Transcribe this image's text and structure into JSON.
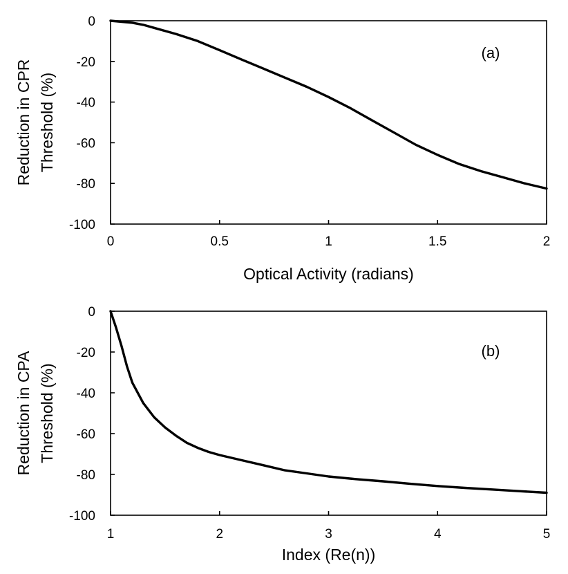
{
  "chart_data": [
    {
      "type": "line",
      "panel_label": "(a)",
      "title": "",
      "xlabel": "Optical Activity (radians)",
      "ylabel_lines": [
        "Reduction in CPR",
        "Threshold (%)"
      ],
      "xlim": [
        0,
        2
      ],
      "ylim": [
        -100,
        0
      ],
      "xticks": [
        0,
        0.5,
        1,
        1.5,
        2
      ],
      "xtick_labels": [
        "0",
        "0.5",
        "1",
        "1.5",
        "2"
      ],
      "yticks": [
        0,
        -20,
        -40,
        -60,
        -80,
        -100
      ],
      "ytick_labels": [
        "0",
        "-20",
        "-40",
        "-60",
        "-80",
        "-100"
      ],
      "grid": false,
      "series": [
        {
          "name": "CPR threshold reduction",
          "color": "#000000",
          "x": [
            0,
            0.1,
            0.15,
            0.2,
            0.3,
            0.4,
            0.5,
            0.6,
            0.7,
            0.8,
            0.9,
            1.0,
            1.1,
            1.2,
            1.3,
            1.4,
            1.5,
            1.6,
            1.7,
            1.8,
            1.9,
            2.0
          ],
          "y": [
            0,
            -1,
            -2,
            -3.5,
            -6.5,
            -10,
            -14.5,
            -19,
            -23.5,
            -28,
            -32.5,
            -37.5,
            -43,
            -49,
            -55,
            -61,
            -66,
            -70.5,
            -74,
            -77,
            -80,
            -82.5
          ]
        }
      ]
    },
    {
      "type": "line",
      "panel_label": "(b)",
      "title": "",
      "xlabel": "Index (Re(n))",
      "ylabel_lines": [
        "Reduction in CPA",
        "Threshold (%)"
      ],
      "xlim": [
        1,
        5
      ],
      "ylim": [
        -100,
        0
      ],
      "xticks": [
        1,
        2,
        3,
        4,
        5
      ],
      "xtick_labels": [
        "1",
        "2",
        "3",
        "4",
        "5"
      ],
      "yticks": [
        0,
        -20,
        -40,
        -60,
        -80,
        -100
      ],
      "ytick_labels": [
        "0",
        "-20",
        "-40",
        "-60",
        "-80",
        "-100"
      ],
      "grid": false,
      "series": [
        {
          "name": "CPA threshold reduction",
          "color": "#000000",
          "x": [
            1,
            1.05,
            1.1,
            1.15,
            1.2,
            1.3,
            1.4,
            1.5,
            1.6,
            1.7,
            1.8,
            1.9,
            2.0,
            2.2,
            2.4,
            2.6,
            2.8,
            3.0,
            3.25,
            3.5,
            3.75,
            4.0,
            4.25,
            4.5,
            4.75,
            5.0
          ],
          "y": [
            0,
            -8,
            -17,
            -27,
            -35,
            -45,
            -52,
            -57,
            -61,
            -64.5,
            -67,
            -69,
            -70.5,
            -73,
            -75.5,
            -78,
            -79.5,
            -81,
            -82.3,
            -83.4,
            -84.6,
            -85.7,
            -86.6,
            -87.4,
            -88.2,
            -89
          ]
        }
      ]
    }
  ]
}
